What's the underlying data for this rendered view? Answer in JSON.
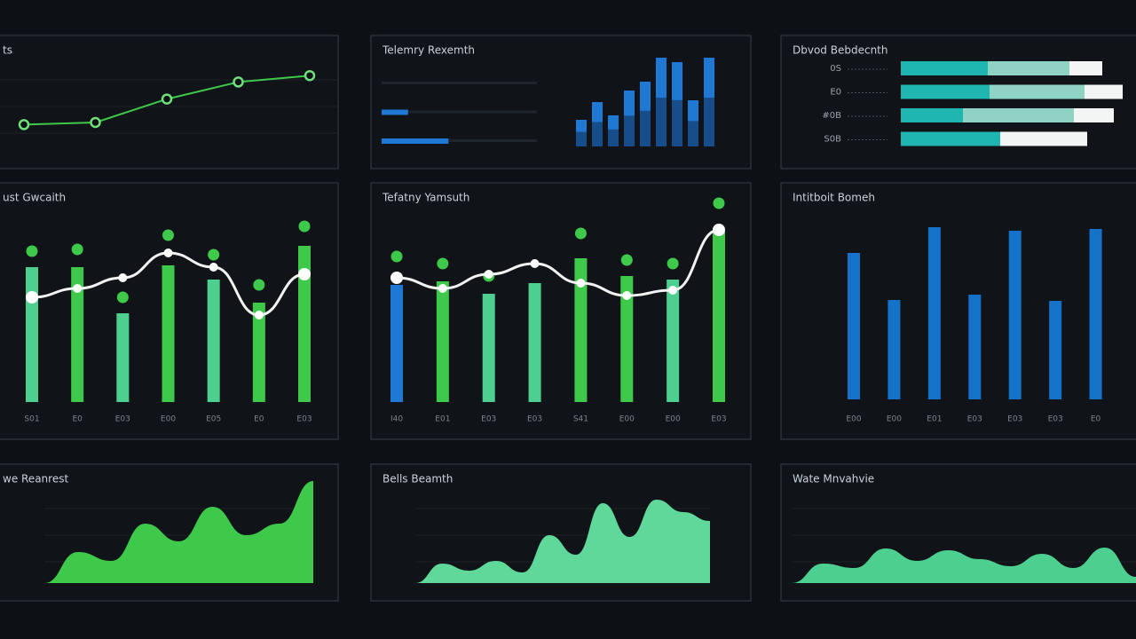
{
  "chart_data": [
    {
      "type": "line",
      "title": "ts",
      "values": [
        33,
        35,
        57,
        73,
        79
      ],
      "ylim": [
        0,
        100
      ],
      "color": "#3ec94a"
    },
    {
      "type": "bar",
      "title": "Telemry Rexemth",
      "values": [
        30,
        50,
        35,
        63,
        73,
        100,
        95,
        52,
        100
      ],
      "ylim": [
        0,
        100
      ],
      "color": "#1e78d4",
      "progress": [
        0,
        17,
        43
      ]
    },
    {
      "type": "hbar",
      "title": "Dbvod Bebdecnth",
      "categories": [
        "0S",
        "E0",
        "#0B",
        "S0B"
      ],
      "xlim": [
        0,
        265
      ],
      "series": [
        {
          "color": "#1fb5b0",
          "values": [
            98,
            100,
            70,
            112
          ]
        },
        {
          "color": "#8fd3c4",
          "values": [
            92,
            107,
            125,
            0
          ]
        },
        {
          "color": "#f2f5f4",
          "values": [
            37,
            43,
            45,
            98
          ]
        }
      ]
    },
    {
      "type": "combo",
      "title": "ust Gwcaith",
      "categories": [
        "S01",
        "E0",
        "E03",
        "E00",
        "E05",
        "E0",
        "E03"
      ],
      "ylim": [
        0,
        120
      ],
      "bars": [
        76,
        76,
        50,
        77,
        69,
        56,
        88
      ],
      "colors": [
        "#4ccf8f",
        "#3ec94a",
        "#4ccf8f",
        "#3ec94a",
        "#4ccf8f",
        "#3ec94a",
        "#3ec94a"
      ],
      "dots": [
        85,
        86,
        59,
        94,
        83,
        66,
        99
      ],
      "line": [
        59,
        64,
        70,
        84,
        76,
        49,
        72
      ]
    },
    {
      "type": "combo",
      "title": "Tefatny Yamsuth",
      "categories": [
        "I40",
        "E01",
        "E03",
        "E03",
        "S41",
        "E00",
        "E00",
        "E03"
      ],
      "ylim": [
        0,
        120
      ],
      "bars": [
        66,
        68,
        61,
        67,
        81,
        71,
        69,
        96
      ],
      "colors": [
        "#1e78d4",
        "#3ec94a",
        "#4ccf8f",
        "#4ccf8f",
        "#3ec94a",
        "#3ec94a",
        "#4ccf8f",
        "#3ec94a"
      ],
      "dots": [
        82,
        78,
        71,
        null,
        95,
        80,
        78,
        112
      ],
      "line": [
        70,
        64,
        72,
        78,
        67,
        60,
        63,
        97
      ]
    },
    {
      "type": "bar",
      "title": "Intitboit Bomeh",
      "categories": [
        "E00",
        "E00",
        "E01",
        "E03",
        "E03",
        "E03",
        "E0"
      ],
      "values": [
        165,
        112,
        194,
        118,
        190,
        111,
        192
      ],
      "ylim": [
        0,
        200
      ],
      "color": "#1572c9"
    },
    {
      "type": "area",
      "title": "we Reanrest",
      "values": [
        0,
        35,
        25,
        67,
        47,
        86,
        54,
        67,
        115
      ],
      "ylim": [
        0,
        120
      ],
      "color": "#3ec94a"
    },
    {
      "type": "area",
      "title": "Bells Beamth",
      "values": [
        0,
        22,
        14,
        25,
        12,
        54,
        32,
        90,
        52,
        94,
        80,
        70
      ],
      "ylim": [
        0,
        120
      ],
      "color": "#5fd89a"
    },
    {
      "type": "area",
      "title": "Wate Mnvahvie",
      "values": [
        0,
        22,
        17,
        39,
        25,
        37,
        27,
        19,
        33,
        17,
        40,
        7
      ],
      "ylim": [
        0,
        120
      ],
      "color": "#4ccf8f"
    }
  ]
}
